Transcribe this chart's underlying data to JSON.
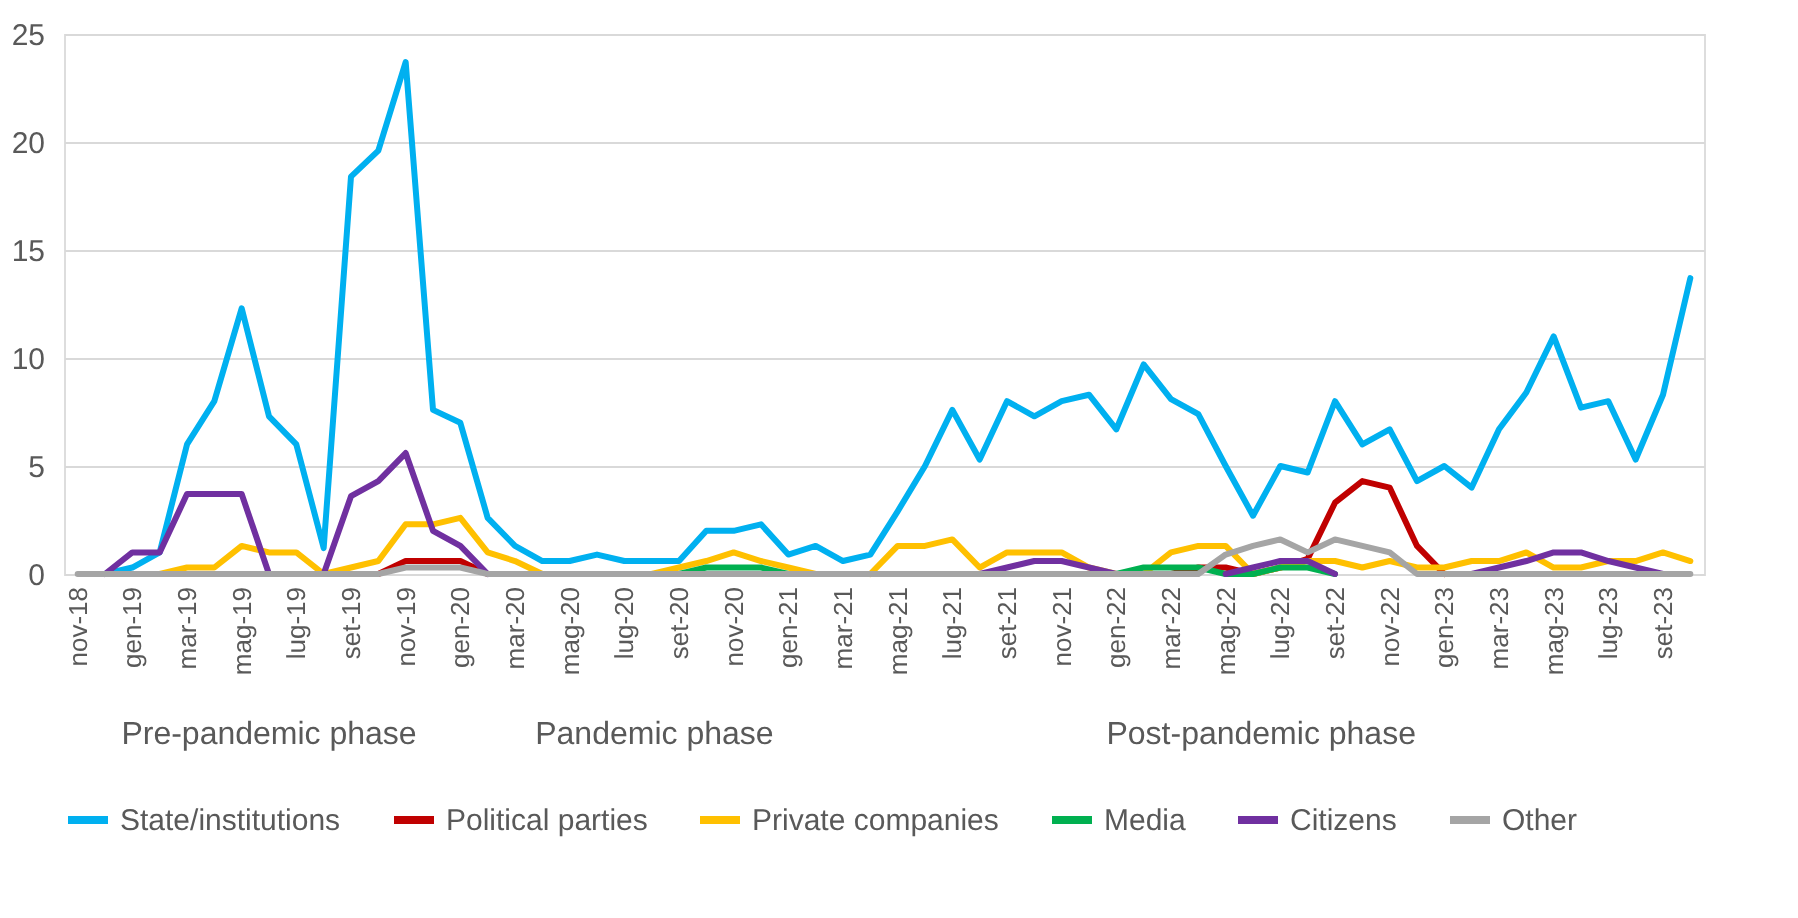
{
  "chart_data": {
    "type": "line",
    "categories": [
      "nov-18",
      null,
      "gen-19",
      null,
      "mar-19",
      null,
      "mag-19",
      null,
      "lug-19",
      null,
      "set-19",
      null,
      "nov-19",
      null,
      "gen-20",
      null,
      "mar-20",
      null,
      "mag-20",
      null,
      "lug-20",
      null,
      "set-20",
      null,
      "nov-20",
      null,
      "gen-21",
      null,
      "mar-21",
      null,
      "mag-21",
      null,
      "lug-21",
      null,
      "set-21",
      null,
      "nov-21",
      null,
      "gen-22",
      null,
      "mar-22",
      null,
      "mag-22",
      null,
      "lug-22",
      null,
      "set-22",
      null,
      "nov-22",
      null,
      "gen-23",
      null,
      "mar-23",
      null,
      "mag-23",
      null,
      "lug-23",
      null,
      "set-23",
      null
    ],
    "series": [
      {
        "name": "State/institutions",
        "color": "#00b0f0",
        "values": [
          null,
          0,
          0.3,
          1.0,
          6.0,
          8.0,
          12.3,
          7.3,
          6.0,
          1.2,
          18.4,
          19.6,
          23.7,
          7.6,
          7.0,
          2.6,
          1.3,
          0.6,
          0.6,
          0.9,
          0.6,
          0.6,
          0.6,
          2.0,
          2.0,
          2.3,
          0.9,
          1.3,
          0.6,
          0.9,
          2.9,
          5.0,
          7.6,
          5.3,
          8.0,
          7.3,
          8.0,
          8.3,
          6.7,
          9.7,
          8.1,
          7.4,
          5.0,
          2.7,
          5.0,
          4.7,
          8.0,
          6.0,
          6.7,
          4.3,
          5.0,
          4.0,
          6.7,
          8.4,
          11.0,
          7.7,
          8.0,
          5.3,
          8.3,
          13.7
        ]
      },
      {
        "name": "Political parties",
        "color": "#c00000",
        "values": [
          null,
          null,
          null,
          null,
          null,
          null,
          null,
          null,
          null,
          null,
          null,
          0,
          0.6,
          0.6,
          0.6,
          0,
          null,
          null,
          null,
          null,
          null,
          null,
          null,
          null,
          null,
          null,
          null,
          null,
          null,
          null,
          null,
          null,
          null,
          null,
          null,
          null,
          null,
          null,
          null,
          null,
          0,
          0.3,
          0.3,
          0,
          0.3,
          0.7,
          3.3,
          4.3,
          4.0,
          1.3,
          0,
          null,
          null,
          null,
          null,
          null,
          null,
          null,
          null,
          null
        ]
      },
      {
        "name": "Private companies",
        "color": "#ffc000",
        "values": [
          null,
          null,
          null,
          0,
          0.3,
          0.3,
          1.3,
          1.0,
          1.0,
          0,
          0.3,
          0.6,
          2.3,
          2.3,
          2.6,
          1.0,
          0.6,
          0,
          null,
          null,
          null,
          0,
          0.3,
          0.6,
          1.0,
          0.6,
          0.3,
          0,
          null,
          0,
          1.3,
          1.3,
          1.6,
          0.3,
          1.0,
          1.0,
          1.0,
          0.3,
          0,
          0,
          1.0,
          1.3,
          1.3,
          0,
          0.3,
          0.6,
          0.6,
          0.3,
          0.6,
          0.3,
          0.3,
          0.6,
          0.6,
          1.0,
          0.3,
          0.3,
          0.6,
          0.6,
          1.0,
          0.6
        ]
      },
      {
        "name": "Media",
        "color": "#00b050",
        "values": [
          null,
          null,
          null,
          null,
          null,
          null,
          null,
          null,
          null,
          null,
          null,
          null,
          null,
          null,
          null,
          null,
          null,
          null,
          null,
          null,
          null,
          null,
          0,
          0.3,
          0.3,
          0.3,
          0,
          null,
          null,
          null,
          null,
          null,
          null,
          null,
          null,
          null,
          null,
          null,
          0,
          0.3,
          0.3,
          0.3,
          0,
          0,
          0.3,
          0.3,
          0,
          null,
          null,
          null,
          null,
          null,
          null,
          null,
          null,
          null,
          null,
          null,
          null,
          null
        ]
      },
      {
        "name": "Citizens",
        "color": "#7030a0",
        "values": [
          null,
          0,
          1.0,
          1.0,
          3.7,
          3.7,
          3.7,
          0,
          null,
          0,
          3.6,
          4.3,
          5.6,
          2.0,
          1.3,
          0,
          null,
          null,
          null,
          null,
          null,
          null,
          null,
          null,
          null,
          null,
          null,
          null,
          null,
          null,
          null,
          null,
          null,
          0,
          0.3,
          0.6,
          0.6,
          0.3,
          0,
          null,
          null,
          null,
          0,
          0.3,
          0.6,
          0.6,
          0,
          null,
          null,
          null,
          null,
          0,
          0.3,
          0.6,
          1.0,
          1.0,
          0.6,
          0.3,
          0,
          null
        ]
      },
      {
        "name": "Other",
        "color": "#a5a5a5",
        "values": [
          0,
          0,
          0,
          0,
          0,
          0,
          0,
          0,
          0,
          0,
          0,
          0,
          0.3,
          0.3,
          0.3,
          0,
          0,
          0,
          0,
          0,
          0,
          0,
          0,
          0,
          0,
          0,
          0,
          0,
          0,
          0,
          0,
          0,
          0,
          0,
          0,
          0,
          0,
          0,
          0,
          0,
          0,
          0,
          0.9,
          1.3,
          1.6,
          1.0,
          1.6,
          1.3,
          1.0,
          0,
          0,
          0,
          0,
          0,
          0,
          0,
          0,
          0,
          0,
          0
        ]
      }
    ],
    "ylim": [
      0,
      25
    ],
    "yticks": [
      0,
      5,
      10,
      15,
      20,
      25
    ],
    "grid": "y",
    "legend": "bottom",
    "annotations": [
      "Pre-pandemic phase",
      "Pandemic phase",
      "Post-pandemic phase"
    ]
  }
}
